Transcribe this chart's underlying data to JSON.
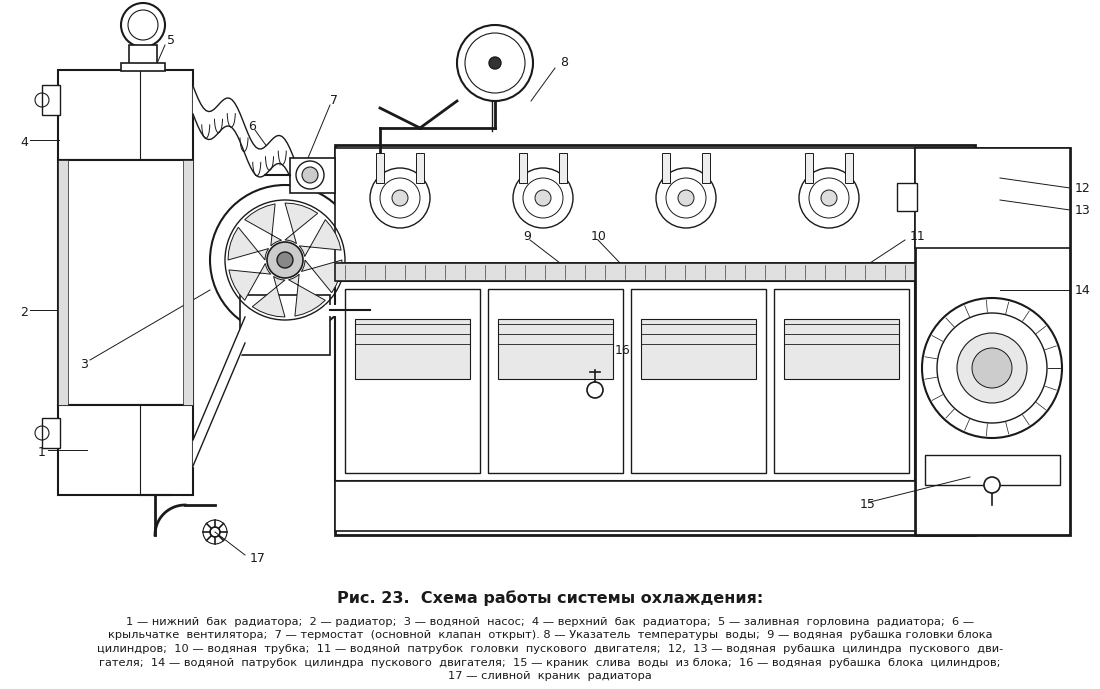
{
  "title": "Рис. 23.  Схема работы системы охлаждения:",
  "caption_lines": [
    "1 — нижний  бак  радиатора;  2 — радиатор;  3 — водяной  насос;  4 — верхний  бак  радиатора;  5 — заливная  горловина  радиатора;  6 —",
    "крыльчатке  вентилятора;  7 — термостат  (основной  клапан  открыт). 8 — Указатель  температуры  воды;  9 — водяная  рубашка головки блока",
    "цилиндров;  10 — водяная  трубка;  11 — водяной  патрубок  головки  пускового  двигателя;  12,  13 — водяная  рубашка  цилиндра  пускового  дви-",
    "гателя;  14 — водяной  патрубок  цилиндра  пускового  двигателя;  15 — краник  слива  воды  из блока;  16 — водяная  рубашка  блока  цилиндров;",
    "17 — сливной  краник  радиатора"
  ],
  "bg_color": "#ffffff",
  "lc": "#1a1a1a",
  "title_fontsize": 11.5,
  "caption_fontsize": 8.2,
  "fig_width": 11.0,
  "fig_height": 6.89,
  "dpi": 100
}
